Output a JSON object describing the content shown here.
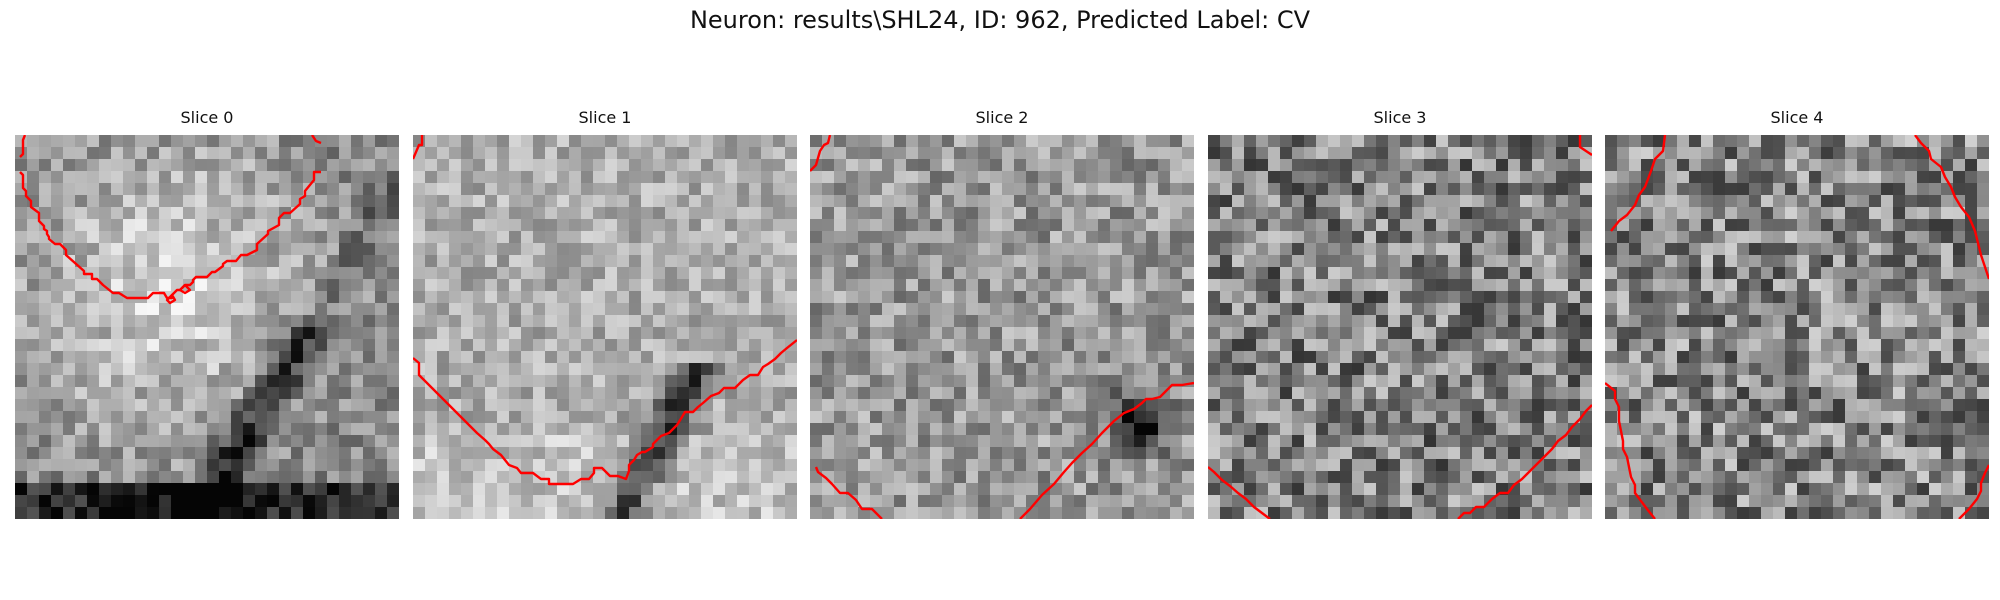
{
  "figure": {
    "title": "Neuron: results\\SHL24, ID: 962, Predicted Label: CV"
  },
  "contour_color": "#ff0000",
  "slices": [
    {
      "title": "Slice 0",
      "contours": [
        "10,0 8,5 8,19 5,22",
        "5,37 8,40 8,53 11,56 11,61 16,66 16,72 24,78 24,86 29,91 29,94 32,96 32,99 34,102 34,104 40,109 45,109 51,115 51,120 69,136 69,139 77,139 77,144 82,144 88,150 98,158 104,158 112,163 133,163 138,158 149,158 152,163 157,163 157,160 162,155 165,155 170,150 175,150 178,147 178,145 181,142 192,142 197,137 200,137 208,131 208,129 212,126 221,126 226,120 232,120 242,115 242,109 253,99 253,96 264,90 264,83 269,78 275,78 285,69 285,64 290,61 290,56 299,45 299,37 306,37",
        "170,150 175,155 170,158 165,155 170,150",
        "157,160 160,165 155,168 152,165 157,160",
        "297,0 301,6 306,8"
      ]
    },
    {
      "title": "Slice 1",
      "contours": [
        "0,24 6,10 9,10 9,0",
        "0,223 6,228 6,240 24,258 40,274 48,282 56,290 64,298 72,305 76,309 80,314 88,320 96,330 104,333 108,338 120,338 128,344 136,344 136,349 160,349 168,344 176,344 181,338 181,333 189,333 197,341 205,341 213,344 216,336 216,330 221,325 224,320 229,317 232,317 240,312 240,309 248,301 256,298 264,290 269,282 272,277 280,277 285,272 290,268 298,261 306,258 311,253 322,253 330,245 337,240 345,240 350,232 355,229 362,224 368,218 374,213 384,205"
      ]
    },
    {
      "title": "Slice 2",
      "contours": [
        "0,36 6,30 10,16 14,10 18,8 20,0",
        "6,332 8,337 16,343 22,349 30,358 38,358 46,365 52,374 62,374 72,384",
        "210,384 220,374 232,360 244,349 254,337 262,328 272,318 282,309 292,298 304,286 314,278 324,274 332,268 336,264 342,264 350,262 356,256 362,250 372,250 384,248"
      ]
    },
    {
      "title": "Slice 3",
      "contours": [
        "372,0 372,12 384,20",
        "0,332 6,337 14,345 22,351 30,358 38,364 46,372 54,378 62,384",
        "250,384 256,378 262,378 268,372 276,372 284,364 292,358 300,358 306,350 314,344 322,336 328,330 336,322 344,314 350,306 358,300 364,292 372,284 378,276 384,270"
      ]
    },
    {
      "title": "Slice 4",
      "contours": [
        "6,96 14,86 22,80 30,70 34,60 40,52 46,36 50,24 58,16 60,0",
        "310,0 316,8 324,16 326,24 336,32 340,42 346,52 350,62 356,72 364,82 370,96 374,112 376,120 380,132 384,144",
        "0,248 10,256 10,264 14,272 14,286 16,296 18,306 18,314 22,322 24,332 26,342 30,350 30,358 36,366 42,374 50,384",
        "384,330 380,338 376,348 376,356 372,364 364,374 354,384"
      ]
    }
  ]
}
